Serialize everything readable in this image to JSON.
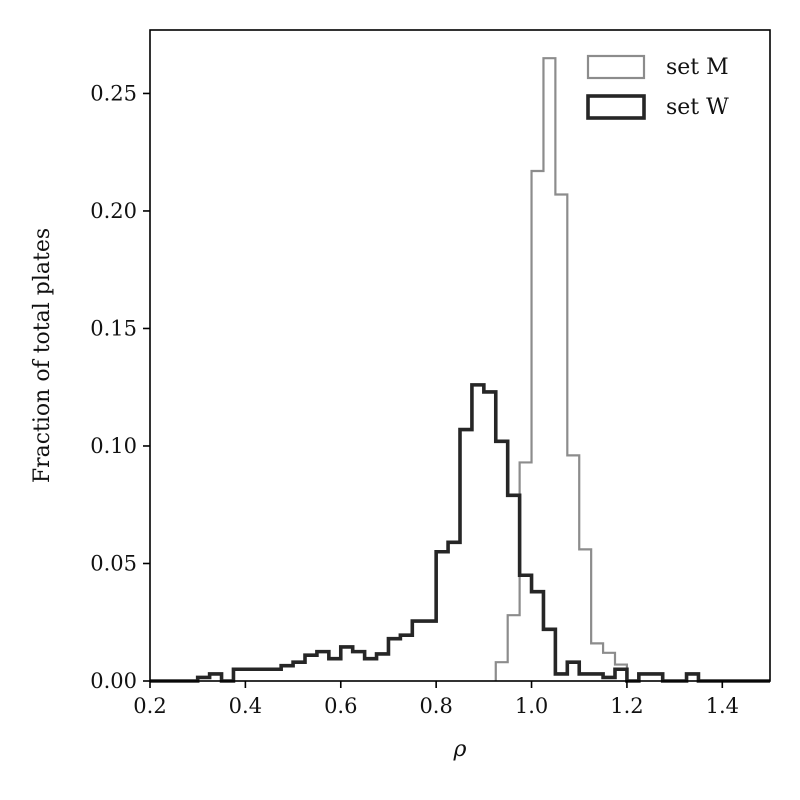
{
  "chart_data": {
    "type": "histogram",
    "xlabel": "ρ",
    "ylabel": "Fraction of total plates",
    "xlim": [
      0.2,
      1.5
    ],
    "ylim": [
      0.0,
      0.277
    ],
    "xticks": [
      "0.2",
      "0.4",
      "0.6",
      "0.8",
      "1.0",
      "1.2",
      "1.4"
    ],
    "xtick_values": [
      0.2,
      0.4,
      0.6,
      0.8,
      1.0,
      1.2,
      1.4
    ],
    "yticks": [
      "0.00",
      "0.05",
      "0.10",
      "0.15",
      "0.20",
      "0.25"
    ],
    "ytick_values": [
      0.0,
      0.05,
      0.1,
      0.15,
      0.2,
      0.25
    ],
    "grid": false,
    "legend_position": "top-right",
    "series": [
      {
        "name": "set M",
        "color": "#8c8c8c",
        "style": "thin",
        "bins": [
          [
            0.925,
            0.95,
            0.008
          ],
          [
            0.95,
            0.975,
            0.028
          ],
          [
            0.975,
            1.0,
            0.093
          ],
          [
            1.0,
            1.025,
            0.217
          ],
          [
            1.025,
            1.05,
            0.265
          ],
          [
            1.05,
            1.075,
            0.207
          ],
          [
            1.075,
            1.1,
            0.096
          ],
          [
            1.1,
            1.125,
            0.056
          ],
          [
            1.125,
            1.15,
            0.016
          ],
          [
            1.15,
            1.175,
            0.012
          ],
          [
            1.175,
            1.2,
            0.007
          ],
          [
            1.2,
            1.225,
            0.0
          ]
        ]
      },
      {
        "name": "set W",
        "color": "#262626",
        "style": "thick",
        "bins": [
          [
            0.2,
            0.3,
            0.0
          ],
          [
            0.3,
            0.325,
            0.0015
          ],
          [
            0.325,
            0.35,
            0.003
          ],
          [
            0.35,
            0.375,
            0.0
          ],
          [
            0.375,
            0.4,
            0.005
          ],
          [
            0.4,
            0.475,
            0.005
          ],
          [
            0.475,
            0.5,
            0.0065
          ],
          [
            0.5,
            0.525,
            0.008
          ],
          [
            0.525,
            0.55,
            0.011
          ],
          [
            0.55,
            0.575,
            0.0125
          ],
          [
            0.575,
            0.6,
            0.0095
          ],
          [
            0.6,
            0.625,
            0.0145
          ],
          [
            0.625,
            0.65,
            0.0125
          ],
          [
            0.65,
            0.675,
            0.0095
          ],
          [
            0.675,
            0.7,
            0.0115
          ],
          [
            0.7,
            0.725,
            0.018
          ],
          [
            0.725,
            0.75,
            0.0195
          ],
          [
            0.75,
            0.8,
            0.0255
          ],
          [
            0.8,
            0.825,
            0.055
          ],
          [
            0.825,
            0.85,
            0.059
          ],
          [
            0.85,
            0.875,
            0.107
          ],
          [
            0.875,
            0.9,
            0.126
          ],
          [
            0.9,
            0.925,
            0.123
          ],
          [
            0.925,
            0.95,
            0.102
          ],
          [
            0.95,
            0.975,
            0.079
          ],
          [
            0.975,
            1.0,
            0.045
          ],
          [
            1.0,
            1.025,
            0.038
          ],
          [
            1.025,
            1.05,
            0.022
          ],
          [
            1.05,
            1.075,
            0.003
          ],
          [
            1.075,
            1.1,
            0.008
          ],
          [
            1.1,
            1.15,
            0.003
          ],
          [
            1.15,
            1.175,
            0.0015
          ],
          [
            1.175,
            1.2,
            0.005
          ],
          [
            1.2,
            1.225,
            0.0
          ],
          [
            1.225,
            1.275,
            0.003
          ],
          [
            1.275,
            1.3,
            0.0
          ],
          [
            1.3,
            1.325,
            0.0
          ],
          [
            1.325,
            1.35,
            0.003
          ],
          [
            1.35,
            1.5,
            0.0
          ]
        ]
      }
    ]
  }
}
